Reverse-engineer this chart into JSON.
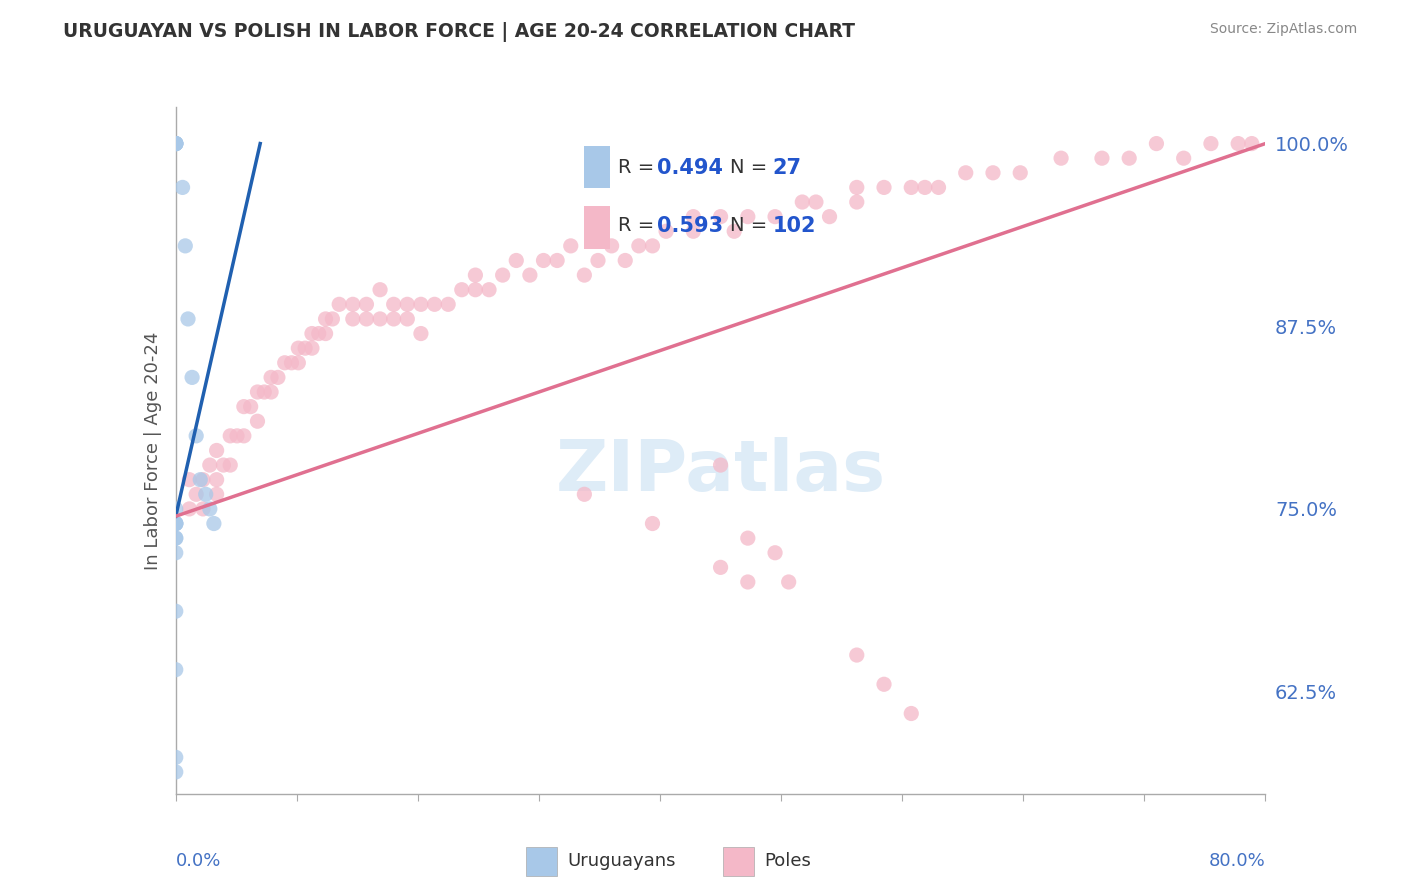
{
  "title": "URUGUAYAN VS POLISH IN LABOR FORCE | AGE 20-24 CORRELATION CHART",
  "source": "Source: ZipAtlas.com",
  "ylabel": "In Labor Force | Age 20-24",
  "legend_uruguayan_R": "0.494",
  "legend_uruguayan_N": "27",
  "legend_polish_R": "0.593",
  "legend_polish_N": "102",
  "uruguayan_scatter_color": "#a8c8e8",
  "polish_scatter_color": "#f4b8c8",
  "uruguayan_trend_color": "#2060b0",
  "polish_trend_color": "#e07090",
  "background_color": "#ffffff",
  "grid_color": "#cccccc",
  "title_color": "#333333",
  "axis_label_color": "#4472c4",
  "text_blue": "#2255cc",
  "watermark_color": "#d0e4f4",
  "xlim": [
    0.0,
    0.8
  ],
  "ylim": [
    0.555,
    1.025
  ],
  "figsize": [
    14.06,
    8.92
  ],
  "dpi": 100,
  "uruguayan_x": [
    0.0,
    0.0,
    0.0,
    0.0,
    0.0,
    0.0,
    0.005,
    0.007,
    0.009,
    0.012,
    0.015,
    0.018,
    0.022,
    0.025,
    0.028,
    0.0,
    0.0,
    0.0,
    0.0,
    0.0,
    0.0,
    0.0,
    0.0,
    0.0,
    0.0,
    0.0,
    0.0
  ],
  "uruguayan_y": [
    1.0,
    1.0,
    1.0,
    1.0,
    1.0,
    1.0,
    0.97,
    0.93,
    0.88,
    0.84,
    0.8,
    0.77,
    0.76,
    0.75,
    0.74,
    0.74,
    0.74,
    0.73,
    0.73,
    0.72,
    0.74,
    0.68,
    0.64,
    0.58,
    0.57,
    0.74,
    0.75
  ],
  "uru_trend_x0": 0.0,
  "uru_trend_y0": 0.745,
  "uru_trend_x1": 0.062,
  "uru_trend_y1": 1.0,
  "pol_trend_x0": 0.0,
  "pol_trend_y0": 0.745,
  "pol_trend_x1": 0.8,
  "pol_trend_y1": 1.0,
  "polish_x": [
    0.01,
    0.01,
    0.015,
    0.02,
    0.02,
    0.025,
    0.03,
    0.03,
    0.03,
    0.035,
    0.04,
    0.04,
    0.045,
    0.05,
    0.05,
    0.055,
    0.06,
    0.06,
    0.065,
    0.07,
    0.07,
    0.075,
    0.08,
    0.085,
    0.09,
    0.09,
    0.095,
    0.1,
    0.1,
    0.105,
    0.11,
    0.11,
    0.115,
    0.12,
    0.13,
    0.13,
    0.14,
    0.14,
    0.15,
    0.15,
    0.16,
    0.16,
    0.17,
    0.17,
    0.18,
    0.18,
    0.19,
    0.2,
    0.21,
    0.22,
    0.22,
    0.23,
    0.24,
    0.25,
    0.26,
    0.27,
    0.28,
    0.29,
    0.3,
    0.31,
    0.32,
    0.33,
    0.34,
    0.35,
    0.36,
    0.38,
    0.38,
    0.4,
    0.41,
    0.42,
    0.44,
    0.46,
    0.47,
    0.48,
    0.5,
    0.5,
    0.52,
    0.54,
    0.55,
    0.56,
    0.58,
    0.6,
    0.62,
    0.65,
    0.68,
    0.7,
    0.72,
    0.74,
    0.76,
    0.78,
    0.79,
    0.4,
    0.42,
    0.44,
    0.5,
    0.52,
    0.54,
    0.3,
    0.35,
    0.4,
    0.42,
    0.45
  ],
  "polish_y": [
    0.77,
    0.75,
    0.76,
    0.77,
    0.75,
    0.78,
    0.79,
    0.77,
    0.76,
    0.78,
    0.8,
    0.78,
    0.8,
    0.82,
    0.8,
    0.82,
    0.83,
    0.81,
    0.83,
    0.84,
    0.83,
    0.84,
    0.85,
    0.85,
    0.86,
    0.85,
    0.86,
    0.87,
    0.86,
    0.87,
    0.88,
    0.87,
    0.88,
    0.89,
    0.89,
    0.88,
    0.89,
    0.88,
    0.9,
    0.88,
    0.89,
    0.88,
    0.89,
    0.88,
    0.89,
    0.87,
    0.89,
    0.89,
    0.9,
    0.91,
    0.9,
    0.9,
    0.91,
    0.92,
    0.91,
    0.92,
    0.92,
    0.93,
    0.91,
    0.92,
    0.93,
    0.92,
    0.93,
    0.93,
    0.94,
    0.95,
    0.94,
    0.95,
    0.94,
    0.95,
    0.95,
    0.96,
    0.96,
    0.95,
    0.97,
    0.96,
    0.97,
    0.97,
    0.97,
    0.97,
    0.98,
    0.98,
    0.98,
    0.99,
    0.99,
    0.99,
    1.0,
    0.99,
    1.0,
    1.0,
    1.0,
    0.71,
    0.7,
    0.72,
    0.65,
    0.63,
    0.61,
    0.76,
    0.74,
    0.78,
    0.73,
    0.7
  ]
}
